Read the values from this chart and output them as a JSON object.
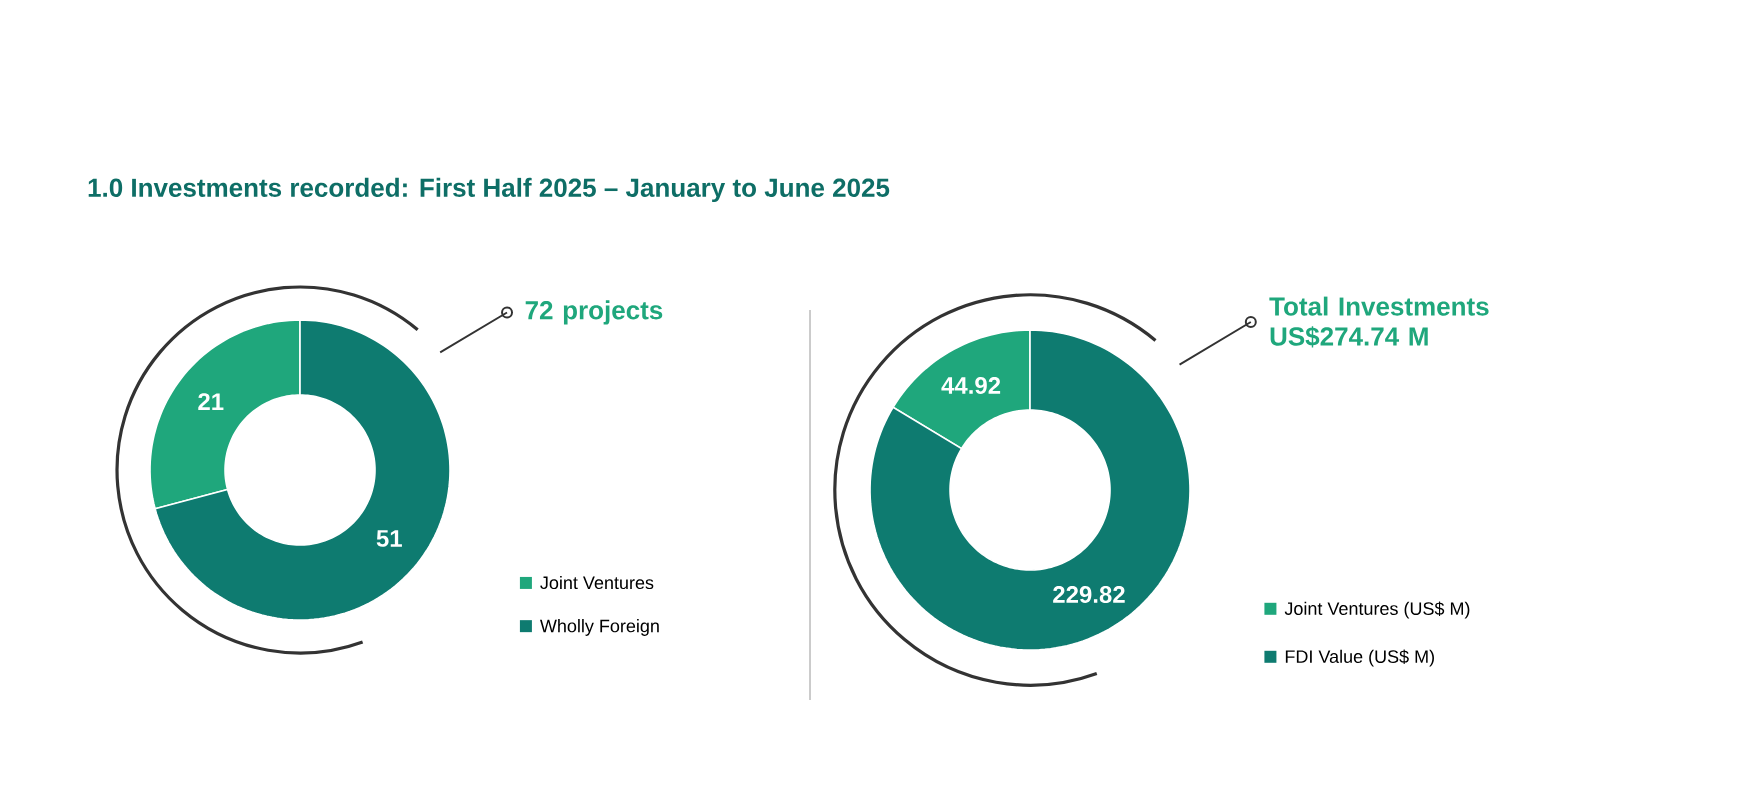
{
  "chart_data": [
    {
      "type": "donut",
      "title": "1.0 Investments recorded: First Half 2025 – January to June 2025",
      "categories": [
        "Joint Ventures",
        "Wholly Foreign"
      ],
      "values": [
        21,
        51
      ],
      "colors": [
        "#1fa77c",
        "#0e7b70"
      ],
      "data_labels": true,
      "legend": "bottom right",
      "annotations": [
        "72 projects"
      ]
    },
    {
      "type": "donut",
      "categories": [
        "Joint Ventures (US$ M)",
        "FDI Value (US$ M)"
      ],
      "values": [
        44.92,
        229.82
      ],
      "colors": [
        "#1fa77c",
        "#0e7b70"
      ],
      "data_labels": true,
      "legend": "bottom right",
      "annotations": [
        "Total Investments US$274.74 M"
      ]
    }
  ]
}
